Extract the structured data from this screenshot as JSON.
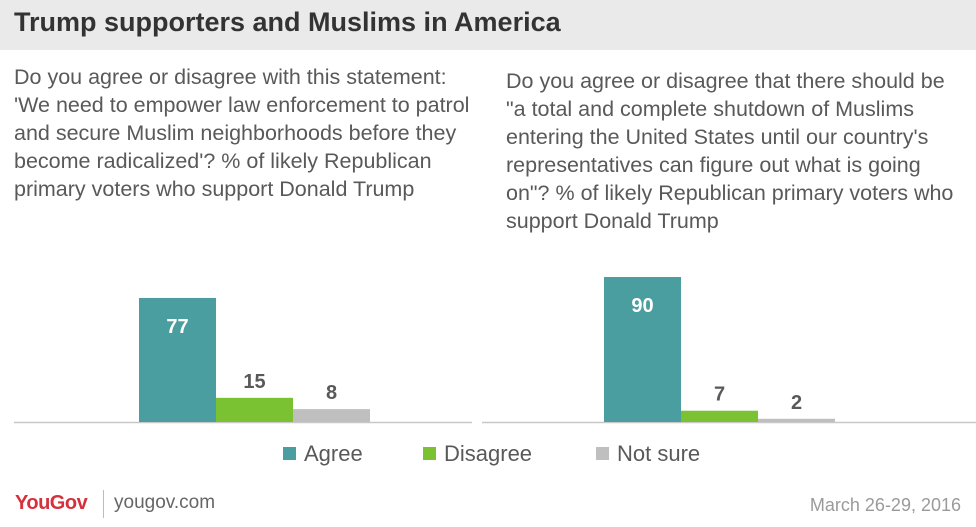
{
  "header": {
    "title": "Trump supporters and Muslims in America"
  },
  "colors": {
    "agree": "#4a9e9f",
    "disagree": "#7ac232",
    "not_sure": "#bfbfbf",
    "brand": "#d6303d"
  },
  "chart_data": [
    {
      "type": "bar",
      "title": "Do you agree or disagree with this statement: 'We need to empower law enforcement to patrol and secure Muslim neighborhoods before they become radicalized'? % of likely Republican primary voters who support Donald Trump",
      "categories": [
        "Agree",
        "Disagree",
        "Not sure"
      ],
      "values": [
        77,
        15,
        8
      ],
      "ylim": [
        0,
        90
      ]
    },
    {
      "type": "bar",
      "title": "Do you agree or disagree that there should be \"a total and complete shutdown of Muslims entering the United States until our country's representatives can figure out what is going on\"? % of likely Republican primary voters who support Donald Trump",
      "categories": [
        "Agree",
        "Disagree",
        "Not sure"
      ],
      "values": [
        90,
        7,
        2
      ],
      "ylim": [
        0,
        90
      ]
    }
  ],
  "legend": [
    {
      "label": "Agree",
      "color": "#4a9e9f"
    },
    {
      "label": "Disagree",
      "color": "#7ac232"
    },
    {
      "label": "Not sure",
      "color": "#bfbfbf"
    }
  ],
  "footer": {
    "logo": "YouGov",
    "url": "yougov.com",
    "date": "March 26-29, 2016"
  }
}
